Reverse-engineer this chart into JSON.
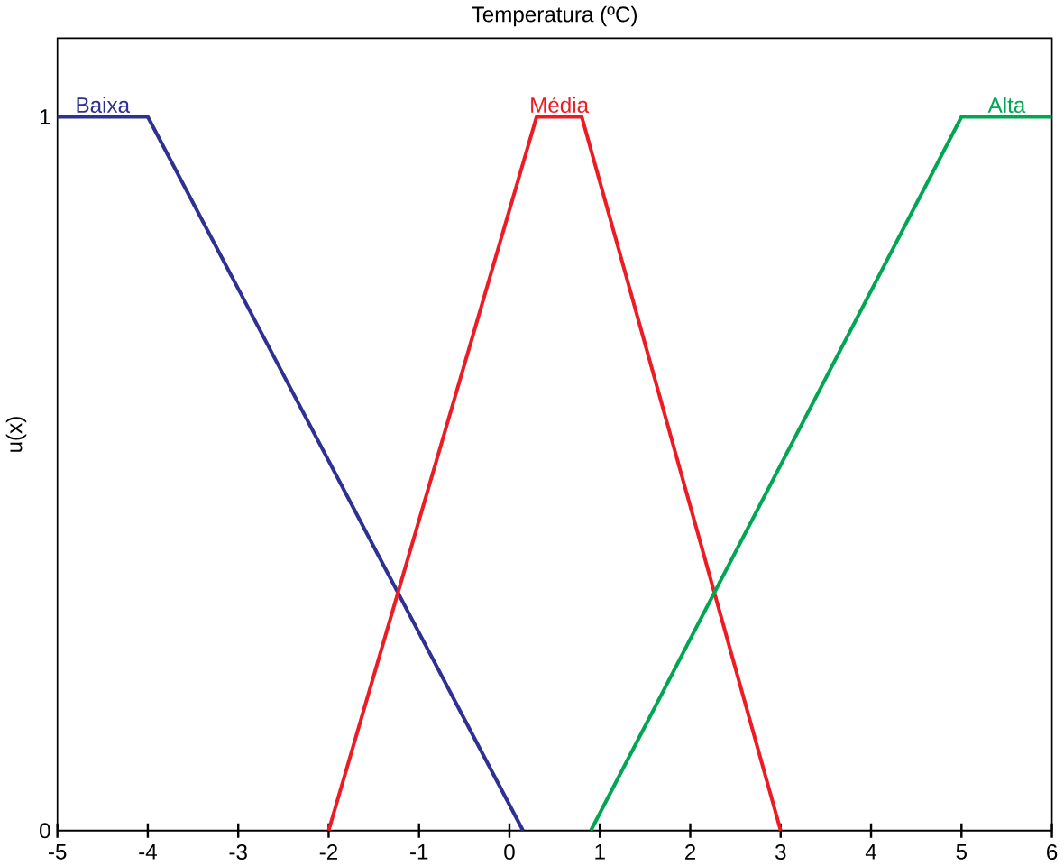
{
  "chart_data": {
    "type": "line",
    "title": "Temperatura (ºC)",
    "ylabel": "u(x)",
    "xlim": [
      -5,
      6
    ],
    "ylim": [
      0,
      1.11
    ],
    "xticks": [
      -5,
      -4,
      -3,
      -2,
      -1,
      0,
      1,
      2,
      3,
      4,
      5,
      6
    ],
    "yticks": [
      0,
      1
    ],
    "grid": false,
    "legend": false,
    "marker": "none",
    "line_style": "solid",
    "series": [
      {
        "name": "Baixa",
        "color": "#2e3192",
        "x": [
          -5,
          -4,
          0.15
        ],
        "values": [
          1,
          1,
          0
        ]
      },
      {
        "name": "Média",
        "color": "#ed1c24",
        "x": [
          -2,
          0.3,
          0.8,
          3
        ],
        "values": [
          0,
          1,
          1,
          0
        ]
      },
      {
        "name": "Alta",
        "color": "#00a651",
        "x": [
          0.9,
          5,
          6
        ],
        "values": [
          0,
          1,
          1
        ]
      }
    ]
  }
}
